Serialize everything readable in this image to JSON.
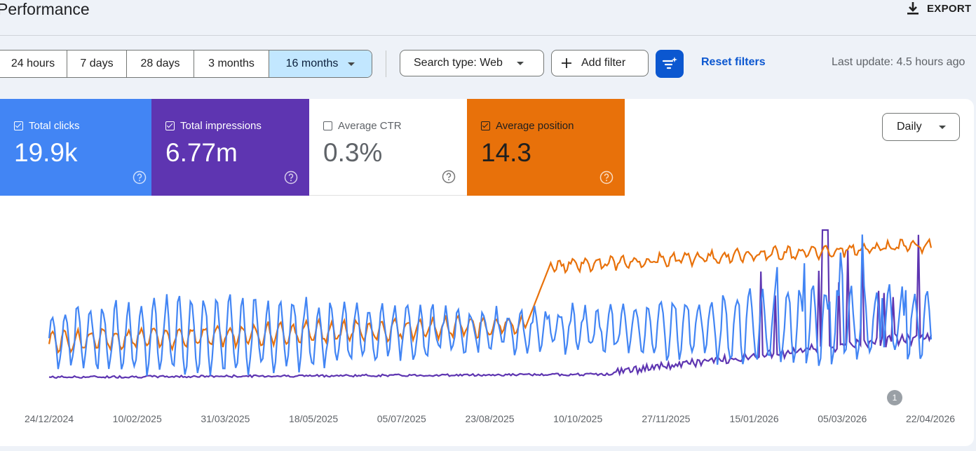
{
  "header": {
    "title": "Performance",
    "export_label": "EXPORT"
  },
  "date_range": {
    "options": [
      "24 hours",
      "7 days",
      "28 days",
      "3 months",
      "16 months"
    ],
    "selected": "16 months"
  },
  "filters": {
    "search_type": "Search type: Web",
    "add_filter": "Add filter",
    "reset": "Reset filters",
    "last_update": "Last update: 4.5 hours ago"
  },
  "metrics": [
    {
      "label": "Total clicks",
      "value": "19.9k",
      "checked": true,
      "color": "#4285f4"
    },
    {
      "label": "Total impressions",
      "value": "6.77m",
      "checked": true,
      "color": "#5e35b1"
    },
    {
      "label": "Average CTR",
      "value": "0.3%",
      "checked": false,
      "color": "#ffffff"
    },
    {
      "label": "Average position",
      "value": "14.3",
      "checked": true,
      "color": "#e8710a"
    }
  ],
  "granularity": "Daily",
  "annotation_badge": "1",
  "chart_data": {
    "type": "line",
    "x_tick_labels": [
      "24/12/2024",
      "10/02/2025",
      "31/03/2025",
      "18/05/2025",
      "05/07/2025",
      "23/08/2025",
      "10/10/2025",
      "27/11/2025",
      "15/01/2026",
      "05/03/2026",
      "22/04/2026"
    ],
    "x_range": [
      "24/12/2024",
      "25/04/2026"
    ],
    "y_axis_visible": false,
    "grid": false,
    "series": [
      {
        "name": "Total clicks",
        "color": "#4285f4",
        "shape": "weekly-oscillation",
        "start_level": 0.28,
        "end_level": 0.45,
        "peak": 0.97
      },
      {
        "name": "Total impressions",
        "color": "#5e35b1",
        "shape": "flat-then-spiky",
        "start_level": 0.02,
        "end_level": 0.25,
        "peak": 1.0
      },
      {
        "name": "Average position",
        "color": "#e8710a",
        "shape": "step-up",
        "start_level": 0.26,
        "end_level": 0.9,
        "step_date": "01/09/2025"
      }
    ]
  }
}
